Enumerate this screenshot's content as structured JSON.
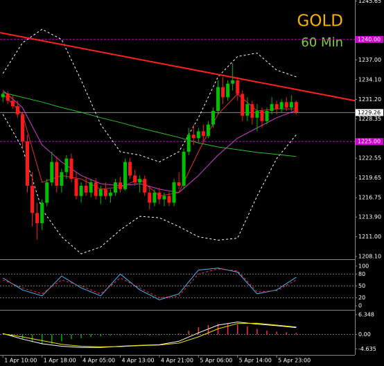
{
  "chart_data": [
    {
      "type": "candlestick",
      "title": "GOLD",
      "subtitle": "60 Min",
      "x": [
        0,
        1,
        2,
        3,
        4,
        5,
        6,
        7,
        8,
        9,
        10,
        11,
        12,
        13,
        14,
        15,
        16,
        17,
        18,
        19,
        20,
        21,
        22,
        23,
        24,
        25,
        26,
        27,
        28,
        29,
        30,
        31,
        32,
        33,
        34,
        35,
        36,
        37,
        38,
        39,
        40,
        41,
        42,
        43,
        44,
        45,
        46,
        47,
        48,
        49,
        50,
        51,
        52,
        53,
        54,
        55,
        56,
        57,
        58,
        59,
        60
      ],
      "open": [
        1231.5,
        1232.0,
        1231.0,
        1230.2,
        1229.0,
        1225.0,
        1218.5,
        1214.5,
        1213.0,
        1216.0,
        1219.0,
        1222.0,
        1218.5,
        1220.5,
        1222.5,
        1219.5,
        1217.0,
        1218.5,
        1217.5,
        1219.0,
        1217.0,
        1218.0,
        1217.0,
        1217.5,
        1219.0,
        1218.0,
        1222.0,
        1220.0,
        1219.0,
        1219.5,
        1217.5,
        1216.0,
        1217.5,
        1216.5,
        1217.0,
        1216.0,
        1219.0,
        1218.5,
        1223.5,
        1226.0,
        1225.5,
        1226.5,
        1225.8,
        1227.5,
        1229.5,
        1233.0,
        1231.5,
        1233.5,
        1234.0,
        1232.0,
        1228.8,
        1230.5,
        1228.5,
        1229.5,
        1228.0,
        1229.5,
        1230.5,
        1229.8,
        1230.8,
        1230.0,
        1230.8
      ],
      "high": [
        1232.3,
        1232.4,
        1231.8,
        1231.0,
        1229.4,
        1226.0,
        1220.5,
        1216.0,
        1216.5,
        1219.5,
        1223.5,
        1222.8,
        1221.0,
        1223.0,
        1223.2,
        1220.5,
        1219.0,
        1219.8,
        1219.5,
        1219.6,
        1218.5,
        1219.0,
        1218.0,
        1219.5,
        1219.8,
        1222.5,
        1222.6,
        1220.8,
        1220.0,
        1220.0,
        1218.5,
        1218.0,
        1218.2,
        1217.5,
        1217.6,
        1219.5,
        1220.5,
        1224.0,
        1227.0,
        1227.5,
        1227.0,
        1227.5,
        1228.0,
        1230.0,
        1234.0,
        1234.5,
        1234.0,
        1236.5,
        1234.5,
        1232.5,
        1231.5,
        1231.0,
        1230.5,
        1230.0,
        1230.0,
        1231.5,
        1231.0,
        1231.2,
        1231.5,
        1231.8,
        1231.0
      ],
      "low": [
        1230.8,
        1230.5,
        1229.8,
        1228.5,
        1224.0,
        1217.5,
        1212.5,
        1210.6,
        1212.0,
        1215.5,
        1218.5,
        1217.5,
        1217.5,
        1219.5,
        1219.0,
        1216.5,
        1216.0,
        1217.0,
        1216.8,
        1216.5,
        1215.8,
        1216.5,
        1216.0,
        1217.0,
        1217.5,
        1217.8,
        1219.5,
        1218.5,
        1217.5,
        1217.0,
        1215.0,
        1215.5,
        1215.8,
        1215.5,
        1215.5,
        1215.5,
        1218.0,
        1218.0,
        1223.0,
        1224.5,
        1225.0,
        1225.0,
        1225.5,
        1227.0,
        1229.0,
        1230.5,
        1231.0,
        1232.5,
        1231.0,
        1228.0,
        1228.0,
        1227.5,
        1226.5,
        1227.0,
        1227.5,
        1229.0,
        1229.0,
        1229.3,
        1229.5,
        1229.5,
        1229.0
      ],
      "close": [
        1232.0,
        1231.0,
        1230.2,
        1229.0,
        1225.0,
        1218.5,
        1214.5,
        1213.0,
        1216.0,
        1219.0,
        1222.0,
        1218.5,
        1220.5,
        1222.5,
        1219.5,
        1217.0,
        1218.5,
        1217.5,
        1219.0,
        1217.0,
        1218.0,
        1217.0,
        1217.5,
        1219.0,
        1218.0,
        1222.0,
        1220.0,
        1219.0,
        1219.5,
        1217.5,
        1216.0,
        1217.5,
        1216.5,
        1217.0,
        1216.0,
        1219.0,
        1218.5,
        1223.5,
        1226.0,
        1225.5,
        1226.5,
        1225.8,
        1227.5,
        1229.5,
        1233.0,
        1231.5,
        1233.5,
        1234.0,
        1232.0,
        1228.8,
        1230.5,
        1228.5,
        1229.5,
        1228.0,
        1229.5,
        1230.5,
        1229.8,
        1230.8,
        1230.0,
        1230.8,
        1229.3
      ],
      "up_color": "#00c000",
      "down_color": "#ff1a1a",
      "xlim": [
        -0.6,
        72
      ],
      "xticks": [
        {
          "value": 0,
          "label": "1 Apr 10:00"
        },
        {
          "value": 8,
          "label": "1 Apr 18:00"
        },
        {
          "value": 16,
          "label": "4 Apr 05:00"
        },
        {
          "value": 24,
          "label": "4 Apr 13:00"
        },
        {
          "value": 32,
          "label": "4 Apr 21:00"
        },
        {
          "value": 40,
          "label": "5 Apr 06:00"
        },
        {
          "value": 48,
          "label": "5 Apr 14:00"
        },
        {
          "value": 56,
          "label": "5 Apr 23:00"
        }
      ],
      "ylim": [
        1207.8,
        1245.8
      ],
      "yticks": [
        1245.65,
        {
          "value": 1237,
          "label": "1237.00"
        },
        {
          "value": 1234.1,
          "label": "1234.10"
        },
        {
          "value": 1231.2,
          "label": "1231.20"
        },
        1228.35,
        1222.55,
        1219.65,
        1216.75,
        {
          "value": 1213.9,
          "label": "1213.90"
        },
        {
          "value": 1211,
          "label": "1211.00"
        },
        {
          "value": 1208.1,
          "label": "1208.10"
        }
      ],
      "levels": [
        {
          "value": 1240,
          "label": "1240.00",
          "color": "#d000d0"
        },
        {
          "value": 1225,
          "label": "1225.00",
          "color": "#d000d0"
        }
      ],
      "last_price": 1229.26,
      "trendline": {
        "x": [
          -0.6,
          72
        ],
        "values": [
          1241.0,
          1231.0
        ],
        "color": "#ff2020"
      },
      "overlays": [
        {
          "color": "#ffffff",
          "style": "dashed",
          "x": [
            0,
            4,
            8,
            12,
            16,
            20,
            24,
            28,
            32,
            36,
            40,
            44,
            48,
            52,
            56,
            60
          ],
          "values": [
            1235.0,
            1239.5,
            1241.5,
            1240.0,
            1234.0,
            1227.5,
            1223.5,
            1223.0,
            1222.0,
            1223.5,
            1228.5,
            1234.5,
            1237.5,
            1238.0,
            1235.5,
            1234.5
          ]
        },
        {
          "color": "#ffffff",
          "style": "dashed",
          "x": [
            0,
            4,
            8,
            12,
            16,
            20,
            24,
            28,
            32,
            36,
            40,
            44,
            48,
            52,
            56,
            60
          ],
          "values": [
            1229.0,
            1224.0,
            1215.0,
            1211.0,
            1208.5,
            1209.5,
            1212.0,
            1214.0,
            1213.8,
            1212.5,
            1211.0,
            1210.5,
            1210.8,
            1217.0,
            1222.5,
            1226.0
          ]
        },
        {
          "color": "#2fbf2f",
          "style": "solid",
          "x": [
            0,
            4,
            8,
            12,
            16,
            20,
            24,
            28,
            32,
            36,
            40,
            44,
            48,
            52,
            56,
            60
          ],
          "values": [
            1232.2,
            1231.5,
            1230.8,
            1230.0,
            1229.3,
            1228.5,
            1227.8,
            1227.0,
            1226.3,
            1225.6,
            1224.8,
            1224.2,
            1223.8,
            1223.4,
            1223.1,
            1222.8
          ]
        },
        {
          "color": "#d040d0",
          "style": "solid",
          "x": [
            0,
            4,
            8,
            12,
            16,
            20,
            24,
            28,
            32,
            36,
            40,
            44,
            48,
            52,
            56,
            60
          ],
          "values": [
            1232.5,
            1230.0,
            1224.5,
            1222.0,
            1220.0,
            1218.8,
            1218.5,
            1218.8,
            1218.0,
            1217.5,
            1220.0,
            1223.0,
            1225.5,
            1227.0,
            1228.5,
            1229.6
          ]
        },
        {
          "color": "#e03030",
          "style": "solid",
          "x": [
            0,
            4,
            8,
            12,
            16,
            20,
            24,
            28,
            32,
            36,
            40,
            44,
            48,
            52,
            56,
            60
          ],
          "values": [
            1232.0,
            1229.0,
            1219.0,
            1220.0,
            1219.5,
            1218.0,
            1218.3,
            1219.5,
            1217.0,
            1217.5,
            1223.5,
            1229.0,
            1232.0,
            1229.5,
            1229.8,
            1229.8
          ]
        }
      ]
    },
    {
      "type": "line",
      "ylim": [
        -8.6,
        113.8
      ],
      "yticks": [
        100,
        80,
        50,
        20,
        0
      ],
      "levels": [
        80,
        50,
        20
      ],
      "series": [
        {
          "color": "#4fb4ff",
          "style": "solid",
          "x": [
            0,
            4,
            8,
            12,
            16,
            20,
            24,
            28,
            32,
            36,
            40,
            44,
            48,
            52,
            56,
            60
          ],
          "values": [
            70,
            40,
            25,
            75,
            45,
            25,
            80,
            40,
            15,
            30,
            90,
            95,
            85,
            30,
            40,
            72
          ]
        },
        {
          "color": "#ff3030",
          "style": "dashed",
          "x": [
            0,
            4,
            8,
            12,
            16,
            20,
            24,
            28,
            32,
            36,
            40,
            44,
            48,
            52,
            56,
            60
          ],
          "values": [
            65,
            45,
            30,
            65,
            50,
            30,
            70,
            45,
            20,
            25,
            80,
            93,
            88,
            35,
            38,
            65
          ]
        }
      ]
    },
    {
      "type": "bar",
      "ylim": [
        -6.35,
        7.44
      ],
      "yticks": [
        6.348,
        {
          "value": 0,
          "label": "0.00"
        },
        -4.635
      ],
      "levels": [
        0
      ],
      "bars": {
        "up_color": "#ff3030",
        "down_color": "#00b000",
        "x": [
          0,
          2,
          4,
          6,
          8,
          10,
          12,
          14,
          16,
          18,
          20,
          22,
          24,
          26,
          28,
          30,
          32,
          34,
          36,
          38,
          40,
          42,
          44,
          46,
          48,
          50,
          52,
          54,
          56,
          58,
          60
        ],
        "values": [
          0.2,
          -0.5,
          -1.5,
          -2.5,
          -3.2,
          -3.0,
          -2.2,
          -1.5,
          -1.2,
          -0.8,
          -0.6,
          -0.4,
          -0.3,
          -0.2,
          -0.3,
          -0.4,
          -0.3,
          -0.2,
          0.3,
          1.2,
          2.3,
          3.0,
          3.4,
          3.5,
          3.2,
          2.6,
          1.8,
          1.2,
          0.9,
          0.7,
          0.5
        ]
      },
      "series": [
        {
          "color": "#ffffff",
          "style": "solid",
          "x": [
            0,
            4,
            8,
            12,
            16,
            20,
            24,
            28,
            32,
            36,
            40,
            44,
            48,
            52,
            56,
            60
          ],
          "values": [
            0.3,
            -1.5,
            -3.0,
            -3.8,
            -4.2,
            -4.2,
            -3.8,
            -3.5,
            -3.3,
            -2.2,
            0.5,
            3.0,
            4.0,
            3.3,
            2.8,
            2.2
          ]
        },
        {
          "color": "#f0e000",
          "style": "solid",
          "x": [
            0,
            4,
            8,
            12,
            16,
            20,
            24,
            28,
            32,
            36,
            40,
            44,
            48,
            52,
            56,
            60
          ],
          "values": [
            0.2,
            -0.8,
            -2.0,
            -3.2,
            -3.8,
            -4.0,
            -3.9,
            -3.6,
            -3.4,
            -2.8,
            -0.8,
            1.8,
            3.5,
            3.6,
            3.0,
            2.4
          ]
        }
      ]
    }
  ]
}
